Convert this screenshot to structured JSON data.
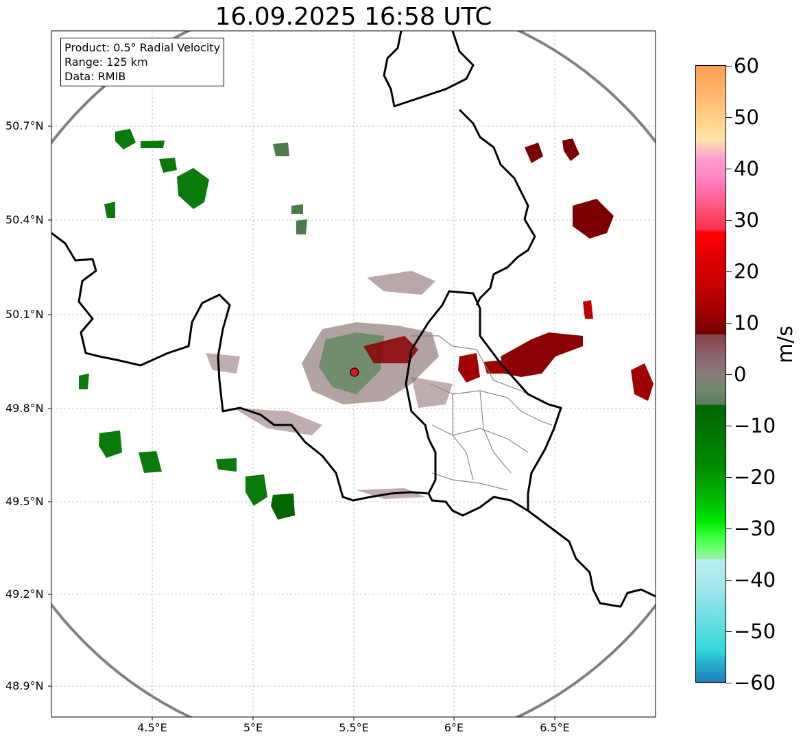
{
  "title": "16.09.2025 16:58 UTC",
  "info_box": {
    "product": "Product: 0.5° Radial Velocity",
    "range": "Range: 125 km",
    "data": "Data: RMIB"
  },
  "map": {
    "lon_range": [
      4.0,
      7.0
    ],
    "lat_range": [
      48.8,
      51.0
    ],
    "lon_ticks": [
      "4.5°E",
      "5°E",
      "5.5°E",
      "6°E",
      "6.5°E"
    ],
    "lat_ticks": [
      "50.7°N",
      "50.4°N",
      "50.1°N",
      "49.8°N",
      "49.5°N",
      "49.2°N",
      "48.9°N"
    ],
    "gridlines": true,
    "radar_site": {
      "lon": 5.51,
      "lat": 49.91,
      "marker_color": "#e4141b"
    },
    "range_ring_color": "#808080",
    "border_color": "#000000",
    "province_color": "#888888"
  },
  "colorbar": {
    "min": -60,
    "max": 60,
    "unit": "m/s",
    "tick_labels": [
      "60",
      "50",
      "40",
      "30",
      "20",
      "10",
      "0",
      "−10",
      "−20",
      "−30",
      "−40",
      "−50",
      "−60"
    ],
    "tick_values": [
      60,
      50,
      40,
      30,
      20,
      10,
      0,
      -10,
      -20,
      -30,
      -40,
      -50,
      -60
    ]
  }
}
